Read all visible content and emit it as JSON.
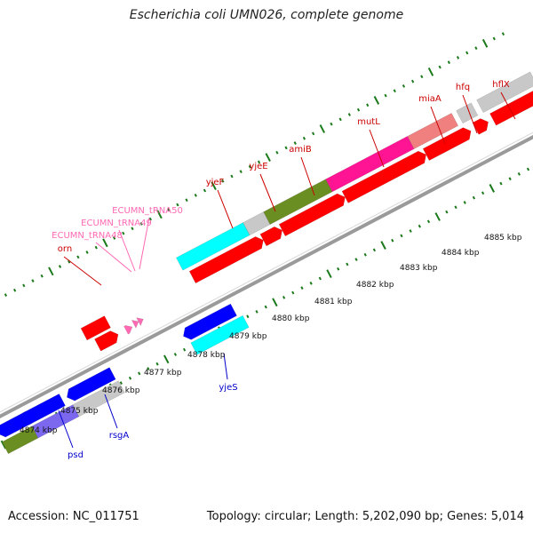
{
  "title": "Escherichia coli UMN026, complete genome",
  "footer": {
    "accession": "Accession: NC_011751",
    "topology": "Topology: circular; Length: 5,202,090 bp; Genes: 5,014"
  },
  "colors": {
    "background": "#ffffff",
    "backbone": "#9a9a9a",
    "tick": "#1a7a1a",
    "red_gene": "#ff0000",
    "blue_gene": "#0000ff",
    "cyan_gene": "#00ffff",
    "olive_gene": "#6b8e23",
    "pink_gene": "#ff1493",
    "salmon_gene": "#f08080",
    "gray_gene": "#c8c8c8",
    "purple_gene": "#7b68ee",
    "trna": "#ff69b4",
    "label_top": "#cc0000",
    "label_trna": "#ff69b4",
    "label_bottom": "#0000cc"
  },
  "kbp_labels": [
    {
      "text": "4874 kbp"
    },
    {
      "text": "4875 kbp"
    },
    {
      "text": "4876 kbp"
    },
    {
      "text": "4877 kbp"
    },
    {
      "text": "4878 kbp"
    },
    {
      "text": "4879 kbp"
    },
    {
      "text": "4880 kbp"
    },
    {
      "text": "4881 kbp"
    },
    {
      "text": "4882 kbp"
    },
    {
      "text": "4883 kbp"
    },
    {
      "text": "4884 kbp"
    },
    {
      "text": "4885 kbp"
    }
  ],
  "gene_labels_top": [
    "orn",
    "yjeF",
    "yjeE",
    "amiB",
    "mutL",
    "miaA",
    "hfq",
    "hflX"
  ],
  "trna_labels": [
    "ECUMN_tRNA48",
    "ECUMN_tRNA49",
    "ECUMN_tRNA50"
  ],
  "gene_labels_bottom": [
    "psd",
    "rsgA",
    "yjeS"
  ]
}
